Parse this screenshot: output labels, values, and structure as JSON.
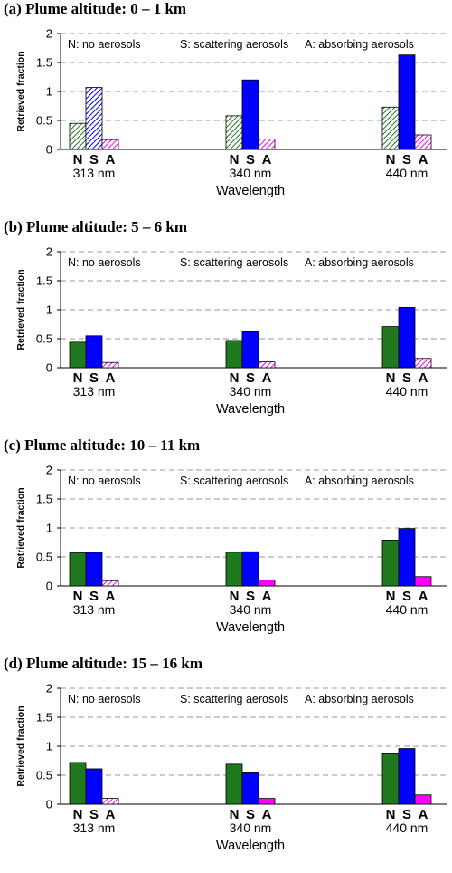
{
  "chart_data": [
    {
      "type": "bar",
      "title": "(a) Plume altitude: 0 – 1 km",
      "ylabel": "Retrieved fraction",
      "xlabel": "Wavelength",
      "ylim": [
        0,
        2
      ],
      "yticks": [
        "0",
        "0.5",
        "1",
        "1.5",
        "2"
      ],
      "legend": [
        "N: no aerosols",
        "S: scattering aerosols",
        "A: absorbing aerosols"
      ],
      "categories": [
        "313 nm",
        "340 nm",
        "440 nm"
      ],
      "series": [
        {
          "name": "N",
          "values": [
            0.45,
            0.58,
            0.73
          ],
          "color": "#1f7a1f",
          "hatched": [
            true,
            true,
            true
          ]
        },
        {
          "name": "S",
          "values": [
            1.07,
            1.2,
            1.63
          ],
          "color": "#0000ff",
          "hatched": [
            true,
            false,
            false
          ]
        },
        {
          "name": "A",
          "values": [
            0.17,
            0.18,
            0.25
          ],
          "color": "#ff00ff",
          "hatched": [
            true,
            true,
            true
          ]
        }
      ],
      "grid": true
    },
    {
      "type": "bar",
      "title": "(b) Plume altitude: 5 – 6 km",
      "ylabel": "Retrieved fraction",
      "xlabel": "Wavelength",
      "ylim": [
        0,
        2
      ],
      "yticks": [
        "0",
        "0.5",
        "1",
        "1.5",
        "2"
      ],
      "legend": [
        "N: no aerosols",
        "S: scattering aerosols",
        "A: absorbing aerosols"
      ],
      "categories": [
        "313 nm",
        "340 nm",
        "440 nm"
      ],
      "series": [
        {
          "name": "N",
          "values": [
            0.44,
            0.47,
            0.71
          ],
          "color": "#1f7a1f",
          "hatched": [
            false,
            false,
            false
          ]
        },
        {
          "name": "S",
          "values": [
            0.55,
            0.62,
            1.04
          ],
          "color": "#0000ff",
          "hatched": [
            false,
            false,
            false
          ]
        },
        {
          "name": "A",
          "values": [
            0.09,
            0.1,
            0.16
          ],
          "color": "#ff00ff",
          "hatched": [
            true,
            true,
            true
          ]
        }
      ],
      "grid": true
    },
    {
      "type": "bar",
      "title": "(c) Plume altitude: 10 – 11 km",
      "ylabel": "Retrieved fraction",
      "xlabel": "Wavelength",
      "ylim": [
        0,
        2
      ],
      "yticks": [
        "0",
        "0.5",
        "1",
        "1.5",
        "2"
      ],
      "legend": [
        "N: no aerosols",
        "S: scattering aerosols",
        "A: absorbing aerosols"
      ],
      "categories": [
        "313 nm",
        "340 nm",
        "440 nm"
      ],
      "series": [
        {
          "name": "N",
          "values": [
            0.57,
            0.58,
            0.79
          ],
          "color": "#1f7a1f",
          "hatched": [
            false,
            false,
            false
          ]
        },
        {
          "name": "S",
          "values": [
            0.58,
            0.59,
            0.99
          ],
          "color": "#0000ff",
          "hatched": [
            false,
            false,
            false
          ]
        },
        {
          "name": "A",
          "values": [
            0.09,
            0.1,
            0.16
          ],
          "color": "#ff00ff",
          "hatched": [
            true,
            false,
            false
          ]
        }
      ],
      "grid": true
    },
    {
      "type": "bar",
      "title": "(d) Plume altitude: 15 – 16 km",
      "ylabel": "Retrieved fraction",
      "xlabel": "Wavelength",
      "ylim": [
        0,
        2
      ],
      "yticks": [
        "0",
        "0.5",
        "1",
        "1.5",
        "2"
      ],
      "legend": [
        "N: no aerosols",
        "S: scattering aerosols",
        "A: absorbing aerosols"
      ],
      "categories": [
        "313 nm",
        "340 nm",
        "440 nm"
      ],
      "series": [
        {
          "name": "N",
          "values": [
            0.72,
            0.69,
            0.87
          ],
          "color": "#1f7a1f",
          "hatched": [
            false,
            false,
            false
          ]
        },
        {
          "name": "S",
          "values": [
            0.61,
            0.54,
            0.96
          ],
          "color": "#0000ff",
          "hatched": [
            false,
            false,
            false
          ]
        },
        {
          "name": "A",
          "values": [
            0.1,
            0.1,
            0.16
          ],
          "color": "#ff00ff",
          "hatched": [
            true,
            false,
            false
          ]
        }
      ],
      "grid": true
    }
  ]
}
